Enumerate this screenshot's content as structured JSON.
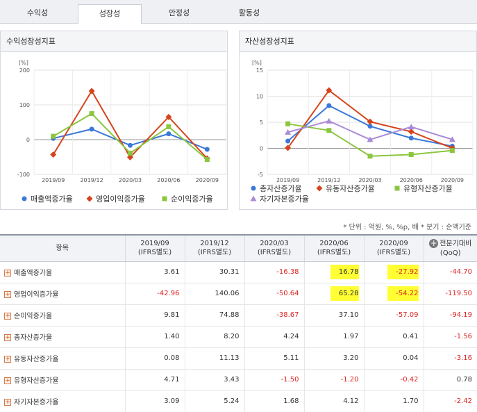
{
  "tabs": [
    "수익성",
    "성장성",
    "안정성",
    "활동성"
  ],
  "active_tab": 1,
  "note": "* 단위 : 억원, %, %p, 배     * 분기 : 순액기준",
  "chart_data": [
    {
      "type": "line",
      "title": "수익성장성지표",
      "ylabel": "[%]",
      "ylim": [
        -100,
        200
      ],
      "yticks": [
        -100,
        0,
        100,
        200
      ],
      "grid": true,
      "categories": [
        "2019/09",
        "2019/12",
        "2020/03",
        "2020/06",
        "2020/09"
      ],
      "legend_position": "bottom",
      "series": [
        {
          "name": "매출액증가율",
          "color": "#3a78d9",
          "marker": "circle",
          "values": [
            3.61,
            30.31,
            -16.38,
            16.78,
            -27.92
          ]
        },
        {
          "name": "영업이익증가율",
          "color": "#d5441c",
          "marker": "diamond",
          "values": [
            -42.96,
            140.06,
            -50.64,
            65.28,
            -54.22
          ]
        },
        {
          "name": "순이익증가율",
          "color": "#8cc63f",
          "marker": "square",
          "values": [
            9.81,
            74.88,
            -38.67,
            37.1,
            -57.09
          ]
        }
      ]
    },
    {
      "type": "line",
      "title": "자산성장성지표",
      "ylabel": "[%]",
      "ylim": [
        -5,
        15
      ],
      "yticks": [
        -5,
        0,
        5,
        10,
        15
      ],
      "grid": true,
      "categories": [
        "2019/09",
        "2019/12",
        "2020/03",
        "2020/06",
        "2020/09"
      ],
      "legend_position": "bottom",
      "series": [
        {
          "name": "총자산증가율",
          "color": "#3a78d9",
          "marker": "circle",
          "values": [
            1.4,
            8.2,
            4.24,
            1.97,
            0.41
          ]
        },
        {
          "name": "유동자산증가율",
          "color": "#d5441c",
          "marker": "diamond",
          "values": [
            0.08,
            11.13,
            5.11,
            3.2,
            0.04
          ]
        },
        {
          "name": "유형자산증가율",
          "color": "#8cc63f",
          "marker": "square",
          "values": [
            4.71,
            3.43,
            -1.5,
            -1.2,
            -0.42
          ]
        },
        {
          "name": "자기자본증가율",
          "color": "#a98bd8",
          "marker": "triangle",
          "values": [
            3.09,
            5.24,
            1.68,
            4.12,
            1.7
          ]
        }
      ]
    }
  ],
  "table": {
    "header_item": "항목",
    "columns": [
      {
        "period": "2019/09",
        "basis": "(IFRS별도)"
      },
      {
        "period": "2019/12",
        "basis": "(IFRS별도)"
      },
      {
        "period": "2020/03",
        "basis": "(IFRS별도)"
      },
      {
        "period": "2020/06",
        "basis": "(IFRS별도)"
      },
      {
        "period": "2020/09",
        "basis": "(IFRS별도)"
      }
    ],
    "qoq_label": "전분기대비",
    "qoq_sub": "(QoQ)",
    "rows": [
      {
        "name": "매출액증가율",
        "values": [
          "3.61",
          "30.31",
          "-16.38",
          "16.78",
          "-27.92"
        ],
        "qoq": "-44.70"
      },
      {
        "name": "영업이익증가율",
        "values": [
          "-42.96",
          "140.06",
          "-50.64",
          "65.28",
          "-54.22"
        ],
        "qoq": "-119.50"
      },
      {
        "name": "순이익증가율",
        "values": [
          "9.81",
          "74.88",
          "-38.67",
          "37.10",
          "-57.09"
        ],
        "qoq": "-94.19"
      },
      {
        "name": "총자산증가율",
        "values": [
          "1.40",
          "8.20",
          "4.24",
          "1.97",
          "0.41"
        ],
        "qoq": "-1.56"
      },
      {
        "name": "유동자산증가율",
        "values": [
          "0.08",
          "11.13",
          "5.11",
          "3.20",
          "0.04"
        ],
        "qoq": "-3.16"
      },
      {
        "name": "유형자산증가율",
        "values": [
          "4.71",
          "3.43",
          "-1.50",
          "-1.20",
          "-0.42"
        ],
        "qoq": "0.78"
      },
      {
        "name": "자기자본증가율",
        "values": [
          "3.09",
          "5.24",
          "1.68",
          "4.12",
          "1.70"
        ],
        "qoq": "-2.42"
      }
    ],
    "highlighted": [
      [
        0,
        3
      ],
      [
        0,
        4
      ],
      [
        1,
        3
      ],
      [
        1,
        4
      ]
    ]
  }
}
